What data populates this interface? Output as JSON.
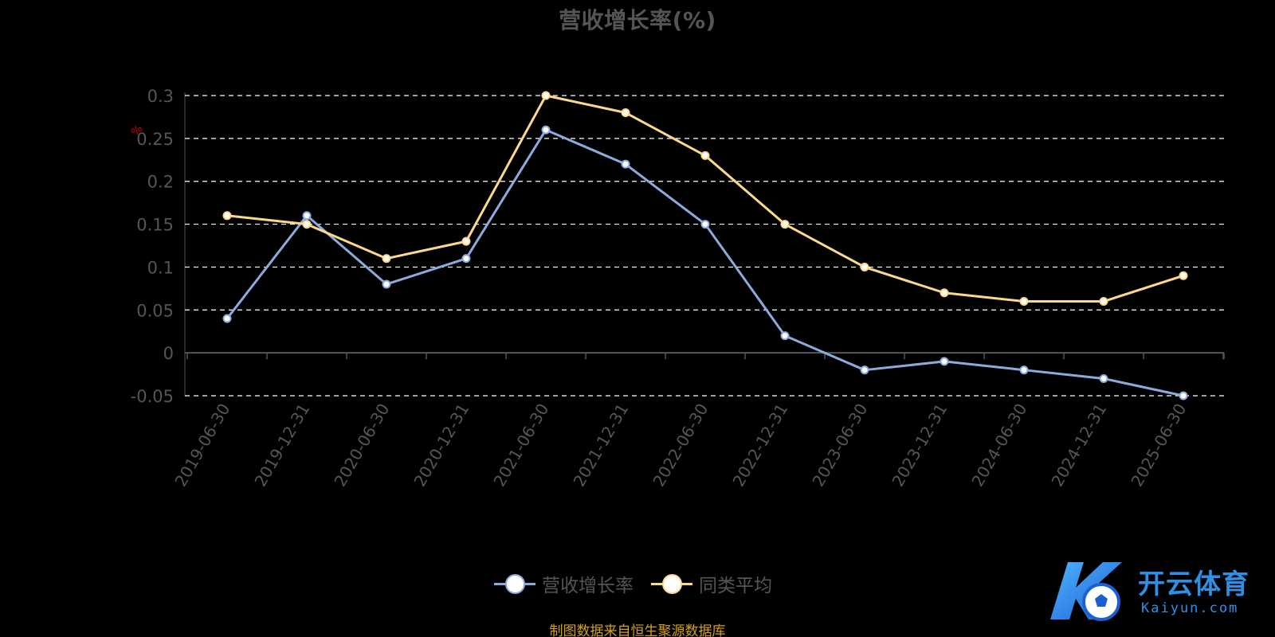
{
  "title": "营收增长率(%)",
  "source_note": "制图数据来自恒生聚源数据库",
  "watermark": {
    "brand": "开云体育",
    "url": "Kaiyun.com"
  },
  "colors": {
    "background": "#000000",
    "series_1": "#8eaadb",
    "series_2": "#fcd98a",
    "grid": "#ffffff",
    "text": "#555555",
    "source": "#d4a017",
    "watermark": "#2f8fe6"
  },
  "chart_data": {
    "type": "line",
    "title": "营收增长率(%)",
    "ylabel": "%",
    "xlabel": "",
    "ylim": [
      -0.05,
      0.3
    ],
    "yticks": [
      {
        "value": 0.3,
        "label": "0.3"
      },
      {
        "value": 0.25,
        "label": "0.25"
      },
      {
        "value": 0.2,
        "label": "0.2"
      },
      {
        "value": 0.15,
        "label": "0.15"
      },
      {
        "value": 0.1,
        "label": "0.1"
      },
      {
        "value": 0.05,
        "label": "0.05"
      },
      {
        "value": 0,
        "label": "0"
      },
      {
        "value": -0.05,
        "label": "-0.05"
      }
    ],
    "grid": true,
    "legend_position": "bottom-center",
    "categories": [
      "2019-06-30",
      "2019-12-31",
      "2020-06-30",
      "2020-12-31",
      "2021-06-30",
      "2021-12-31",
      "2022-06-30",
      "2022-12-31",
      "2023-06-30",
      "2023-12-31",
      "2024-06-30",
      "2024-12-31",
      "2025-06-30"
    ],
    "series": [
      {
        "name": "营收增长率",
        "color": "#8eaadb",
        "values": [
          0.04,
          0.16,
          0.08,
          0.11,
          0.26,
          0.22,
          0.15,
          0.02,
          -0.02,
          -0.01,
          -0.02,
          -0.03,
          -0.05
        ]
      },
      {
        "name": "同类平均",
        "color": "#fcd98a",
        "values": [
          0.16,
          0.15,
          0.11,
          0.13,
          0.3,
          0.28,
          0.23,
          0.15,
          0.1,
          0.07,
          0.06,
          0.06,
          0.09
        ]
      }
    ]
  }
}
